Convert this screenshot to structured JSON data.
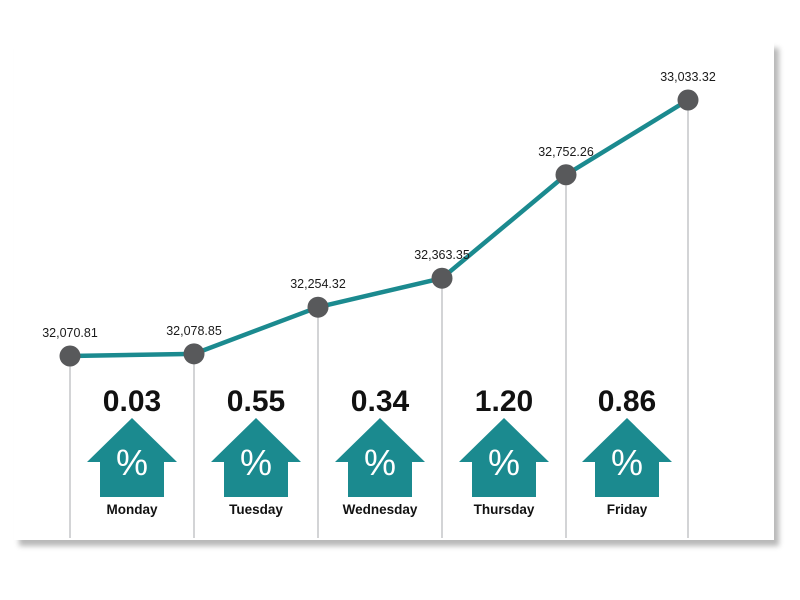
{
  "chart_data": {
    "type": "line",
    "title": "",
    "xlabel": "",
    "ylabel": "",
    "categories": [
      "Monday",
      "Tuesday",
      "Wednesday",
      "Thursday",
      "Friday"
    ],
    "point_labels": [
      "32,070.81",
      "32,078.85",
      "32,254.32",
      "32,363.35",
      "32,752.26",
      "33,033.32"
    ],
    "points": [
      {
        "index": 0,
        "value": 32070.81
      },
      {
        "index": 1,
        "value": 32078.85
      },
      {
        "index": 2,
        "value": 32254.32
      },
      {
        "index": 3,
        "value": 32363.35
      },
      {
        "index": 4,
        "value": 32752.26
      },
      {
        "index": 5,
        "value": 33033.32
      }
    ],
    "daily_change": [
      {
        "day": "Monday",
        "value": "0.03",
        "direction": "up"
      },
      {
        "day": "Tuesday",
        "value": "0.55",
        "direction": "up"
      },
      {
        "day": "Wednesday",
        "value": "0.34",
        "direction": "up"
      },
      {
        "day": "Thursday",
        "value": "1.20",
        "direction": "up"
      },
      {
        "day": "Friday",
        "value": "0.86",
        "direction": "up"
      }
    ],
    "change_unit": "%",
    "grid": false,
    "legend": "none"
  },
  "colors": {
    "line": "#1b8a8f",
    "marker": "#58595b",
    "arrow": "#1b8a8f",
    "divider": "#a7a9ac",
    "text": "#111111"
  },
  "icons": [
    "up-arrow-percent-icon"
  ]
}
